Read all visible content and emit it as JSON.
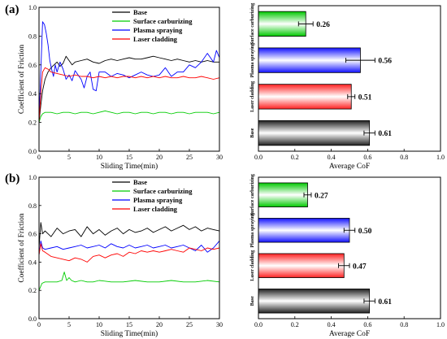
{
  "panels": [
    {
      "label": "(a)",
      "line_chart": {
        "type": "line",
        "xlabel": "Sliding Time(min)",
        "ylabel": "Coefficient of Friction",
        "xlim": [
          0,
          30
        ],
        "ylim": [
          0,
          1.0
        ],
        "xticks": [
          "0",
          "5",
          "10",
          "15",
          "20",
          "25",
          "30"
        ],
        "yticks": [
          "0.0",
          "0.2",
          "0.4",
          "0.6",
          "0.8",
          "1.0"
        ],
        "legend_position": "top-center",
        "series": [
          {
            "name": "Base",
            "color": "#000000",
            "x": [
              0,
              0.3,
              0.6,
              1,
              1.5,
              2,
              2.5,
              3,
              3.5,
              4,
              4.5,
              5,
              5.5,
              6,
              7,
              8,
              9,
              10,
              11,
              12,
              13,
              14,
              15,
              16,
              17,
              18,
              19,
              20,
              21,
              22,
              23,
              24,
              25,
              26,
              27,
              28,
              29,
              30
            ],
            "y": [
              0.2,
              0.32,
              0.42,
              0.5,
              0.55,
              0.58,
              0.6,
              0.62,
              0.59,
              0.61,
              0.66,
              0.63,
              0.6,
              0.62,
              0.63,
              0.64,
              0.62,
              0.61,
              0.63,
              0.64,
              0.63,
              0.64,
              0.65,
              0.64,
              0.64,
              0.65,
              0.66,
              0.65,
              0.64,
              0.63,
              0.64,
              0.63,
              0.62,
              0.63,
              0.62,
              0.63,
              0.62,
              0.62
            ]
          },
          {
            "name": "Surface carburizing",
            "color": "#00cc00",
            "x": [
              0,
              0.3,
              0.6,
              1,
              2,
              3,
              4,
              5,
              6,
              7,
              8,
              9,
              10,
              11,
              12,
              13,
              14,
              15,
              16,
              17,
              18,
              19,
              20,
              21,
              22,
              23,
              24,
              25,
              26,
              27,
              28,
              29,
              30
            ],
            "y": [
              0.2,
              0.24,
              0.26,
              0.27,
              0.27,
              0.26,
              0.27,
              0.27,
              0.26,
              0.27,
              0.27,
              0.26,
              0.27,
              0.28,
              0.27,
              0.26,
              0.27,
              0.27,
              0.26,
              0.27,
              0.27,
              0.26,
              0.27,
              0.27,
              0.26,
              0.27,
              0.27,
              0.26,
              0.27,
              0.27,
              0.27,
              0.26,
              0.27
            ]
          },
          {
            "name": "Plasma spraying",
            "color": "#0000ff",
            "x": [
              0,
              0.3,
              0.6,
              0.9,
              1.2,
              1.5,
              1.8,
              2.1,
              2.4,
              2.7,
              3,
              3.5,
              4,
              4.5,
              5,
              5.5,
              6,
              6.5,
              7,
              7.5,
              8,
              8.5,
              9,
              9.5,
              10,
              11,
              12,
              13,
              14,
              15,
              16,
              17,
              18,
              19,
              20,
              21,
              22,
              23,
              24,
              25,
              26,
              27,
              28,
              29,
              29.5,
              30
            ],
            "y": [
              0.22,
              0.55,
              0.9,
              0.88,
              0.82,
              0.74,
              0.63,
              0.57,
              0.52,
              0.6,
              0.55,
              0.62,
              0.57,
              0.5,
              0.53,
              0.49,
              0.56,
              0.53,
              0.5,
              0.44,
              0.52,
              0.55,
              0.43,
              0.42,
              0.55,
              0.55,
              0.52,
              0.54,
              0.53,
              0.51,
              0.53,
              0.55,
              0.53,
              0.52,
              0.53,
              0.58,
              0.52,
              0.55,
              0.55,
              0.6,
              0.58,
              0.62,
              0.68,
              0.62,
              0.7,
              0.65
            ]
          },
          {
            "name": "Laser cladding",
            "color": "#ff0000",
            "x": [
              0,
              0.3,
              0.6,
              1,
              1.5,
              2,
              3,
              4,
              5,
              6,
              7,
              8,
              9,
              10,
              11,
              12,
              13,
              14,
              15,
              16,
              17,
              18,
              19,
              20,
              21,
              22,
              23,
              24,
              25,
              26,
              27,
              28,
              29,
              30
            ],
            "y": [
              0.2,
              0.4,
              0.55,
              0.58,
              0.57,
              0.55,
              0.54,
              0.53,
              0.52,
              0.53,
              0.52,
              0.52,
              0.51,
              0.52,
              0.51,
              0.52,
              0.51,
              0.52,
              0.52,
              0.51,
              0.52,
              0.51,
              0.52,
              0.51,
              0.52,
              0.51,
              0.51,
              0.52,
              0.51,
              0.51,
              0.52,
              0.51,
              0.5,
              0.51
            ]
          }
        ]
      },
      "bar_chart": {
        "type": "bar",
        "orientation": "horizontal",
        "xlabel": "Average CoF",
        "xlim": [
          0,
          1.0
        ],
        "xticks": [
          "0.0",
          "0.2",
          "0.4",
          "0.6",
          "0.8",
          "1.0"
        ],
        "categories": [
          "Surface carburizing",
          "Plasma spraying",
          "Laser cladding",
          "Base"
        ],
        "values": [
          0.26,
          0.56,
          0.51,
          0.61
        ],
        "errors": [
          0.04,
          0.08,
          0.02,
          0.03
        ],
        "value_labels": [
          "0.26",
          "0.56",
          "0.51",
          "0.61"
        ],
        "colors": [
          "#00c800",
          "#1010ff",
          "#ff2020",
          "#202020"
        ]
      }
    },
    {
      "label": "(b)",
      "line_chart": {
        "type": "line",
        "xlabel": "Sliding Time(min)",
        "ylabel": "Coefficient of Friction",
        "xlim": [
          0,
          30
        ],
        "ylim": [
          0,
          1.0
        ],
        "xticks": [
          "0",
          "5",
          "10",
          "15",
          "20",
          "25",
          "30"
        ],
        "yticks": [
          "0.0",
          "0.2",
          "0.4",
          "0.6",
          "0.8",
          "1.0"
        ],
        "legend_position": "top-center",
        "series": [
          {
            "name": "Base",
            "color": "#000000",
            "x": [
              0,
              0.3,
              0.6,
              1,
              2,
              3,
              4,
              5,
              6,
              7,
              8,
              9,
              10,
              11,
              12,
              13,
              14,
              15,
              16,
              17,
              18,
              19,
              20,
              21,
              22,
              23,
              24,
              25,
              26,
              27,
              28,
              29,
              30
            ],
            "y": [
              0.5,
              0.68,
              0.6,
              0.62,
              0.58,
              0.64,
              0.6,
              0.62,
              0.63,
              0.58,
              0.65,
              0.6,
              0.63,
              0.59,
              0.62,
              0.64,
              0.6,
              0.63,
              0.61,
              0.62,
              0.64,
              0.61,
              0.63,
              0.65,
              0.62,
              0.64,
              0.66,
              0.63,
              0.65,
              0.62,
              0.64,
              0.63,
              0.62
            ]
          },
          {
            "name": "Surface carburizing",
            "color": "#00cc00",
            "x": [
              0,
              0.5,
              1,
              2,
              3,
              3.8,
              4.2,
              4.6,
              5,
              5.4,
              6,
              7,
              8,
              9,
              10,
              12,
              14,
              16,
              18,
              20,
              22,
              24,
              26,
              28,
              30
            ],
            "y": [
              0.2,
              0.25,
              0.26,
              0.26,
              0.26,
              0.27,
              0.33,
              0.27,
              0.29,
              0.27,
              0.26,
              0.27,
              0.26,
              0.26,
              0.27,
              0.26,
              0.26,
              0.27,
              0.26,
              0.26,
              0.27,
              0.26,
              0.26,
              0.27,
              0.26
            ]
          },
          {
            "name": "Plasma spraying",
            "color": "#0000ff",
            "x": [
              0,
              0.3,
              0.6,
              1,
              2,
              3,
              4,
              5,
              6,
              7,
              8,
              9,
              10,
              11,
              12,
              13,
              14,
              15,
              16,
              17,
              18,
              19,
              20,
              21,
              22,
              23,
              24,
              25,
              26,
              27,
              28,
              29,
              30
            ],
            "y": [
              0.45,
              0.55,
              0.5,
              0.49,
              0.5,
              0.51,
              0.49,
              0.5,
              0.51,
              0.52,
              0.5,
              0.51,
              0.52,
              0.5,
              0.53,
              0.51,
              0.5,
              0.52,
              0.5,
              0.51,
              0.52,
              0.5,
              0.51,
              0.52,
              0.5,
              0.51,
              0.52,
              0.5,
              0.48,
              0.52,
              0.47,
              0.5,
              0.55
            ]
          },
          {
            "name": "Laser cladding",
            "color": "#ff0000",
            "x": [
              0,
              0.3,
              0.6,
              1,
              2,
              3,
              4,
              5,
              6,
              7,
              8,
              9,
              10,
              11,
              12,
              13,
              14,
              15,
              16,
              17,
              18,
              19,
              20,
              21,
              22,
              23,
              24,
              25,
              26,
              27,
              28,
              29,
              30
            ],
            "y": [
              0.45,
              0.53,
              0.48,
              0.47,
              0.44,
              0.43,
              0.42,
              0.41,
              0.43,
              0.42,
              0.4,
              0.44,
              0.45,
              0.43,
              0.45,
              0.46,
              0.44,
              0.47,
              0.46,
              0.48,
              0.47,
              0.48,
              0.47,
              0.48,
              0.49,
              0.48,
              0.47,
              0.5,
              0.49,
              0.48,
              0.5,
              0.49,
              0.5
            ]
          }
        ]
      },
      "bar_chart": {
        "type": "bar",
        "orientation": "horizontal",
        "xlabel": "Average CoF",
        "xlim": [
          0,
          1.0
        ],
        "xticks": [
          "0.0",
          "0.2",
          "0.4",
          "0.6",
          "0.8",
          "1.0"
        ],
        "categories": [
          "Surface carburizing",
          "Plasma spraying",
          "Laser cladding",
          "Base"
        ],
        "values": [
          0.27,
          0.5,
          0.47,
          0.61
        ],
        "errors": [
          0.02,
          0.03,
          0.03,
          0.03
        ],
        "value_labels": [
          "0.27",
          "0.50",
          "0.47",
          "0.61"
        ],
        "colors": [
          "#00c800",
          "#1010ff",
          "#ff2020",
          "#202020"
        ]
      }
    }
  ]
}
